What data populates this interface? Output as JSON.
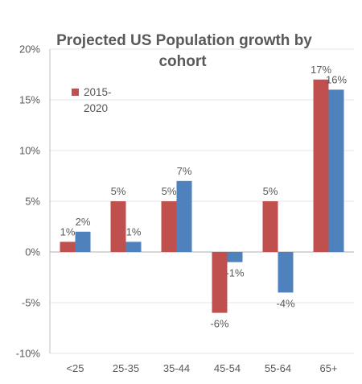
{
  "chart_data": {
    "type": "bar",
    "title_lines": [
      "Projected US Population growth by",
      "cohort"
    ],
    "categories": [
      "<25",
      "25-35",
      "35-44",
      "45-54",
      "55-64",
      "65+"
    ],
    "series": [
      {
        "name_lines": [
          "2015-",
          "2020"
        ],
        "color": "#C0504D",
        "values": [
          1,
          5,
          5,
          -6,
          5,
          17
        ],
        "labels": [
          "1%",
          "5%",
          "5%",
          "-6%",
          "5%",
          "17%"
        ]
      },
      {
        "color": "#4F81BD",
        "values": [
          2,
          1,
          7,
          -1,
          -4,
          16
        ],
        "labels": [
          "2%",
          "1%",
          "7%",
          "-1%",
          "-4%",
          "16%"
        ]
      }
    ],
    "y_ticks": [
      20,
      15,
      10,
      5,
      0,
      -5,
      -10
    ],
    "y_tick_labels": [
      "20%",
      "15%",
      "10%",
      "5%",
      "0%",
      "-5%",
      "-10%"
    ],
    "ylim": [
      -10,
      20
    ],
    "grid": true,
    "legend_position": "top-left"
  }
}
